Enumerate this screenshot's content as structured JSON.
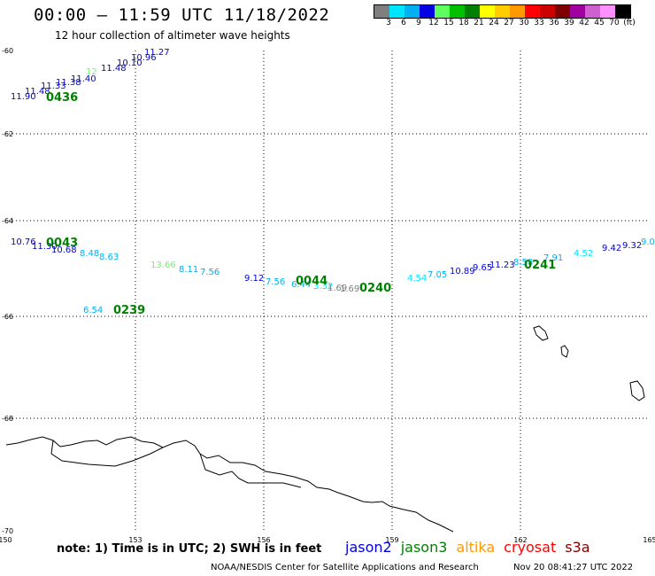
{
  "header": {
    "title": "00:00 – 11:59 UTC 11/18/2022",
    "subtitle": "12 hour collection of altimeter wave heights"
  },
  "colorbar": {
    "colors": [
      "#7f7f7f",
      "#00e5ff",
      "#00b0f0",
      "#0000e0",
      "#60ff60",
      "#00c000",
      "#008000",
      "#ffff00",
      "#ffcc00",
      "#ff9900",
      "#ff0000",
      "#cc0000",
      "#7f0000",
      "#a000a0",
      "#d060d0",
      "#ff90ff",
      "#000000"
    ],
    "labels": [
      "3",
      "6",
      "9",
      "12",
      "15",
      "18",
      "21",
      "24",
      "27",
      "30",
      "33",
      "36",
      "39",
      "42",
      "45",
      "70",
      "(ft)"
    ]
  },
  "map": {
    "lat_labels": [
      "-60",
      "-62",
      "-64",
      "-66",
      "-68",
      "-70"
    ],
    "lon_labels": [
      "150",
      "153",
      "156",
      "159",
      "162",
      "165"
    ],
    "readings": [
      {
        "text": "11.90",
        "color": "#0000e0"
      },
      {
        "text": "11.48",
        "color": "#0000e0"
      },
      {
        "text": "11.33",
        "color": "#0000e0"
      },
      {
        "text": "11.38",
        "color": "#0000e0"
      },
      {
        "text": "11.40",
        "color": "#0000e0"
      },
      {
        "text": "12",
        "color": "#60ff60"
      },
      {
        "text": "11.48",
        "color": "#0000e0"
      },
      {
        "text": "10.10",
        "color": "#0000e0"
      },
      {
        "text": "10.96",
        "color": "#0000e0"
      },
      {
        "text": "11.27",
        "color": "#0000e0"
      },
      {
        "text": "10.76",
        "color": "#0000e0"
      },
      {
        "text": "11.30",
        "color": "#0000e0"
      },
      {
        "text": "10.68",
        "color": "#0000e0"
      },
      {
        "text": "8.48",
        "color": "#00b0f0"
      },
      {
        "text": "8.63",
        "color": "#00b0f0"
      },
      {
        "text": "13.66",
        "color": "#60ff60"
      },
      {
        "text": "8.11",
        "color": "#00b0f0"
      },
      {
        "text": "7.56",
        "color": "#00b0f0"
      },
      {
        "text": "9.12",
        "color": "#0000e0"
      },
      {
        "text": "7.56",
        "color": "#00b0f0"
      },
      {
        "text": "6.44",
        "color": "#00b0f0"
      },
      {
        "text": "3.32",
        "color": "#00e5ff"
      },
      {
        "text": "1.69",
        "color": "#7f7f7f"
      },
      {
        "text": "1.69",
        "color": "#7f7f7f"
      },
      {
        "text": "4.54",
        "color": "#00e5ff"
      },
      {
        "text": "7.05",
        "color": "#00b0f0"
      },
      {
        "text": "10.89",
        "color": "#0000e0"
      },
      {
        "text": "9.65",
        "color": "#0000e0"
      },
      {
        "text": "11.23",
        "color": "#0000e0"
      },
      {
        "text": "8.58",
        "color": "#00b0f0"
      },
      {
        "text": "7.91",
        "color": "#00b0f0"
      },
      {
        "text": "4.52",
        "color": "#00e5ff"
      },
      {
        "text": "9.42",
        "color": "#0000e0"
      },
      {
        "text": "9.32",
        "color": "#0000e0"
      },
      {
        "text": "9.0",
        "color": "#00b0f0"
      },
      {
        "text": "6.54",
        "color": "#00b0f0"
      }
    ],
    "pass_times": [
      {
        "text": "0436",
        "color": "#008000"
      },
      {
        "text": "0043",
        "color": "#008000"
      },
      {
        "text": "0044",
        "color": "#008000"
      },
      {
        "text": "0240",
        "color": "#008000"
      },
      {
        "text": "0241",
        "color": "#008000"
      },
      {
        "text": "0239",
        "color": "#008000"
      }
    ]
  },
  "footer": {
    "note": "note:  1) Time is in UTC;  2) SWH is in feet",
    "satellites": [
      {
        "name": "jason2",
        "color": "#0000e0"
      },
      {
        "name": "jason3",
        "color": "#008000"
      },
      {
        "name": "altika",
        "color": "#ff9900"
      },
      {
        "name": "cryosat",
        "color": "#ff0000"
      },
      {
        "name": "s3a",
        "color": "#7f0000"
      }
    ],
    "credit": "NOAA/NESDIS Center for Satellite Applications and Research",
    "timestamp": "Nov 20 08:41:27 UTC 2022"
  }
}
